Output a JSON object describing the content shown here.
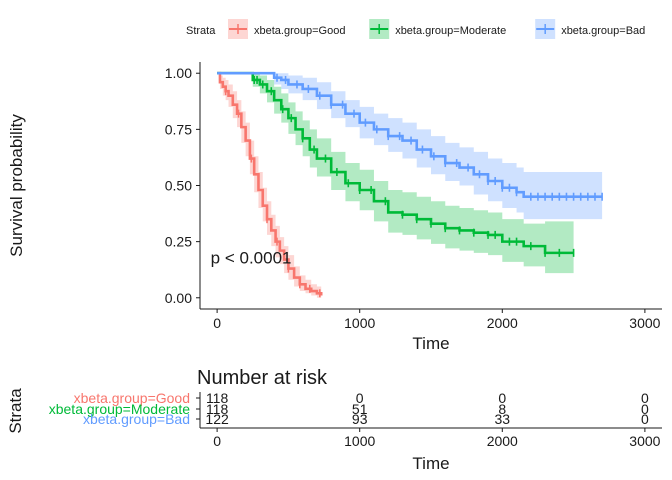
{
  "chart_data": {
    "type": "line",
    "subtype": "kaplan-meier",
    "legend": {
      "title": "Strata",
      "position": "top",
      "entries": [
        {
          "label": "xbeta.group=Good",
          "color": "#F8766D"
        },
        {
          "label": "xbeta.group=Moderate",
          "color": "#00BA38"
        },
        {
          "label": "xbeta.group=Bad",
          "color": "#619CFF"
        }
      ]
    },
    "xlabel": "Time",
    "ylabel": "Survival probability",
    "xlim": [
      -120,
      3120
    ],
    "ylim": [
      -0.05,
      1.05
    ],
    "xticks": [
      0,
      1000,
      2000,
      3000
    ],
    "xtick_labels": [
      "0",
      "1000",
      "2000",
      "3000"
    ],
    "yticks": [
      0,
      0.25,
      0.5,
      0.75,
      1
    ],
    "ytick_labels": [
      "0.00",
      "0.25",
      "0.50",
      "0.75",
      "1.00"
    ],
    "grid": false,
    "annotation": {
      "text": "p < 0.0001",
      "x": 60,
      "y": 0.18
    },
    "series": [
      {
        "name": "xbeta.group=Good",
        "color": "#F8766D",
        "x": [
          0,
          20,
          40,
          60,
          80,
          110,
          140,
          170,
          200,
          230,
          260,
          290,
          320,
          350,
          380,
          410,
          440,
          470,
          500,
          540,
          580,
          620,
          660,
          700,
          730
        ],
        "y": [
          1.0,
          0.96,
          0.94,
          0.92,
          0.9,
          0.86,
          0.82,
          0.76,
          0.7,
          0.62,
          0.55,
          0.48,
          0.41,
          0.35,
          0.3,
          0.25,
          0.21,
          0.17,
          0.13,
          0.09,
          0.06,
          0.04,
          0.03,
          0.02,
          0.01
        ],
        "lower": [
          1.0,
          0.93,
          0.9,
          0.88,
          0.85,
          0.8,
          0.76,
          0.69,
          0.63,
          0.55,
          0.47,
          0.4,
          0.34,
          0.28,
          0.23,
          0.18,
          0.15,
          0.11,
          0.08,
          0.05,
          0.03,
          0.02,
          0.01,
          0.0,
          0.0
        ],
        "upper": [
          1.0,
          0.99,
          0.98,
          0.97,
          0.95,
          0.92,
          0.88,
          0.83,
          0.78,
          0.7,
          0.63,
          0.56,
          0.49,
          0.43,
          0.37,
          0.32,
          0.27,
          0.23,
          0.19,
          0.14,
          0.1,
          0.08,
          0.06,
          0.05,
          0.04
        ]
      },
      {
        "name": "xbeta.group=Moderate",
        "color": "#00BA38",
        "x": [
          0,
          250,
          300,
          350,
          400,
          450,
          500,
          550,
          600,
          650,
          700,
          800,
          900,
          1000,
          1100,
          1200,
          1300,
          1400,
          1500,
          1600,
          1700,
          1800,
          1900,
          2000,
          2150,
          2300,
          2500
        ],
        "y": [
          1.0,
          0.97,
          0.95,
          0.92,
          0.88,
          0.84,
          0.8,
          0.75,
          0.71,
          0.66,
          0.62,
          0.56,
          0.51,
          0.48,
          0.43,
          0.38,
          0.37,
          0.35,
          0.33,
          0.31,
          0.3,
          0.29,
          0.28,
          0.25,
          0.23,
          0.2,
          0.2
        ],
        "lower": [
          1.0,
          0.94,
          0.91,
          0.87,
          0.82,
          0.78,
          0.73,
          0.68,
          0.63,
          0.58,
          0.54,
          0.48,
          0.43,
          0.39,
          0.34,
          0.29,
          0.28,
          0.26,
          0.24,
          0.22,
          0.21,
          0.2,
          0.19,
          0.16,
          0.14,
          0.11,
          0.11
        ],
        "upper": [
          1.0,
          1.0,
          0.99,
          0.97,
          0.94,
          0.91,
          0.87,
          0.83,
          0.79,
          0.75,
          0.71,
          0.65,
          0.6,
          0.57,
          0.52,
          0.48,
          0.47,
          0.45,
          0.43,
          0.41,
          0.4,
          0.39,
          0.38,
          0.35,
          0.33,
          0.34,
          0.34
        ]
      },
      {
        "name": "xbeta.group=Bad",
        "color": "#619CFF",
        "x": [
          0,
          400,
          450,
          500,
          600,
          700,
          800,
          900,
          1000,
          1100,
          1200,
          1300,
          1400,
          1500,
          1600,
          1700,
          1800,
          1900,
          2000,
          2100,
          2150,
          2400,
          2700
        ],
        "y": [
          1.0,
          0.98,
          0.97,
          0.95,
          0.93,
          0.9,
          0.86,
          0.82,
          0.78,
          0.75,
          0.72,
          0.7,
          0.66,
          0.63,
          0.6,
          0.58,
          0.55,
          0.52,
          0.49,
          0.47,
          0.45,
          0.45,
          0.45
        ],
        "lower": [
          1.0,
          0.95,
          0.93,
          0.91,
          0.88,
          0.84,
          0.8,
          0.76,
          0.71,
          0.68,
          0.65,
          0.62,
          0.58,
          0.55,
          0.52,
          0.5,
          0.46,
          0.43,
          0.4,
          0.38,
          0.35,
          0.35,
          0.35
        ],
        "upper": [
          1.0,
          1.0,
          1.0,
          0.99,
          0.98,
          0.96,
          0.92,
          0.88,
          0.85,
          0.82,
          0.8,
          0.78,
          0.75,
          0.72,
          0.69,
          0.67,
          0.65,
          0.62,
          0.6,
          0.58,
          0.56,
          0.56,
          0.56
        ]
      }
    ],
    "censor_marks": {
      "Good": [
        60,
        150,
        240,
        350,
        420,
        500,
        580,
        650,
        720
      ],
      "Moderate": [
        260,
        280,
        320,
        380,
        460,
        520,
        600,
        680,
        760,
        840,
        920,
        1000,
        1080,
        1180,
        1300,
        1400,
        1500,
        1600,
        1700,
        1800,
        1900,
        1950,
        2050,
        2100,
        2200,
        2300,
        2400,
        2500
      ],
      "Bad": [
        420,
        480,
        560,
        640,
        720,
        800,
        880,
        960,
        1040,
        1120,
        1200,
        1280,
        1360,
        1440,
        1520,
        1600,
        1680,
        1760,
        1840,
        1900,
        1950,
        2000,
        2050,
        2100,
        2200,
        2250,
        2300,
        2350,
        2400,
        2450,
        2500,
        2550,
        2600,
        2650,
        2700
      ]
    },
    "risk_table": {
      "title": "Number at risk",
      "ylabel": "Strata",
      "xlabel": "Time",
      "times": [
        0,
        1000,
        2000,
        3000
      ],
      "rows": [
        {
          "label": "xbeta.group=Good",
          "color": "#F8766D",
          "counts": [
            "118",
            "0",
            "0",
            "0"
          ]
        },
        {
          "label": "xbeta.group=Moderate",
          "color": "#00BA38",
          "counts": [
            "118",
            "51",
            "8",
            "0"
          ]
        },
        {
          "label": "xbeta.group=Bad",
          "color": "#619CFF",
          "counts": [
            "122",
            "93",
            "33",
            "0"
          ]
        }
      ]
    }
  }
}
